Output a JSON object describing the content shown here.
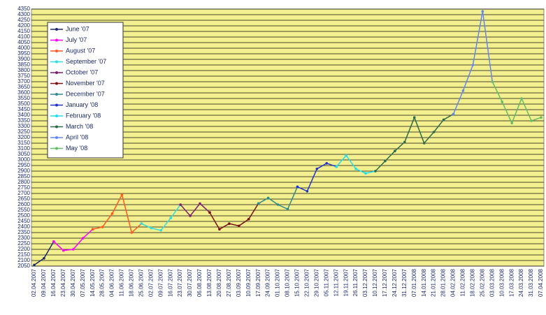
{
  "chart_data": {
    "type": "line",
    "categories": [
      "02.04.2007",
      "09.04.2007",
      "16.04.2007",
      "23.04.2007",
      "30.04.2007",
      "07.05.2007",
      "14.05.2007",
      "28.05.2007",
      "04.06.2007",
      "11.06.2007",
      "18.06.2007",
      "25.06.2007",
      "02.07.2007",
      "09.07.2007",
      "16.07.2007",
      "23.07.2007",
      "30.07.2007",
      "06.08.2007",
      "13.08.2007",
      "20.08.2007",
      "27.08.2007",
      "03.09.2007",
      "10.09.2007",
      "17.09.2007",
      "24.09.2007",
      "01.10.2007",
      "08.10.2007",
      "15.10.2007",
      "22.10.2007",
      "29.10.2007",
      "05.11.2007",
      "12.11.2007",
      "19.11.2007",
      "26.11.2007",
      "03.12.2007",
      "10.12.2007",
      "17.12.2007",
      "24.12.2007",
      "31.12.2007",
      "07.01.2008",
      "14.01.2008",
      "21.01.2008",
      "28.01.2008",
      "04.02.2008",
      "11.02.2008",
      "18.02.2008",
      "25.02.2008",
      "03.03.2008",
      "10.03.2008",
      "17.03.2008",
      "24.03.2008",
      "31.03.2008",
      "07.04.2008"
    ],
    "series": [
      {
        "name": "June '07",
        "color": "#1f2a6e",
        "values": [
          2060,
          2120,
          2270,
          null,
          null,
          null,
          null,
          null,
          null,
          null,
          null,
          null,
          null,
          null,
          null,
          null,
          null,
          null,
          null,
          null,
          null,
          null,
          null,
          null,
          null,
          null,
          null,
          null,
          null,
          null,
          null,
          null,
          null,
          null,
          null,
          null,
          null,
          null,
          null,
          null,
          null,
          null,
          null,
          null,
          null,
          null,
          null,
          null,
          null,
          null,
          null,
          null,
          null
        ]
      },
      {
        "name": "July '07",
        "color": "#ff00ff",
        "values": [
          null,
          null,
          2270,
          2190,
          2200,
          2300,
          2380,
          null,
          null,
          null,
          null,
          null,
          null,
          null,
          null,
          null,
          null,
          null,
          null,
          null,
          null,
          null,
          null,
          null,
          null,
          null,
          null,
          null,
          null,
          null,
          null,
          null,
          null,
          null,
          null,
          null,
          null,
          null,
          null,
          null,
          null,
          null,
          null,
          null,
          null,
          null,
          null,
          null,
          null,
          null,
          null,
          null,
          null
        ]
      },
      {
        "name": "August '07",
        "color": "#ff5a1e",
        "values": [
          null,
          null,
          null,
          null,
          null,
          null,
          2380,
          2400,
          2520,
          2690,
          2350,
          2430,
          null,
          null,
          null,
          null,
          null,
          null,
          null,
          null,
          null,
          null,
          null,
          null,
          null,
          null,
          null,
          null,
          null,
          null,
          null,
          null,
          null,
          null,
          null,
          null,
          null,
          null,
          null,
          null,
          null,
          null,
          null,
          null,
          null,
          null,
          null,
          null,
          null,
          null,
          null,
          null,
          null
        ]
      },
      {
        "name": "September '07",
        "color": "#33dddd",
        "values": [
          null,
          null,
          null,
          null,
          null,
          null,
          null,
          null,
          null,
          null,
          null,
          2430,
          2390,
          2370,
          2480,
          2600,
          null,
          null,
          null,
          null,
          null,
          null,
          null,
          null,
          null,
          null,
          null,
          null,
          null,
          null,
          null,
          null,
          null,
          null,
          null,
          null,
          null,
          null,
          null,
          null,
          null,
          null,
          null,
          null,
          null,
          null,
          null,
          null,
          null,
          null,
          null,
          null,
          null
        ]
      },
      {
        "name": "October '07",
        "color": "#7a1f6e",
        "values": [
          null,
          null,
          null,
          null,
          null,
          null,
          null,
          null,
          null,
          null,
          null,
          null,
          null,
          null,
          null,
          2600,
          2500,
          2610,
          2530,
          null,
          null,
          null,
          null,
          null,
          null,
          null,
          null,
          null,
          null,
          null,
          null,
          null,
          null,
          null,
          null,
          null,
          null,
          null,
          null,
          null,
          null,
          null,
          null,
          null,
          null,
          null,
          null,
          null,
          null,
          null,
          null,
          null,
          null
        ]
      },
      {
        "name": "November '07",
        "color": "#7a1414",
        "values": [
          null,
          null,
          null,
          null,
          null,
          null,
          null,
          null,
          null,
          null,
          null,
          null,
          null,
          null,
          null,
          null,
          null,
          null,
          2530,
          2380,
          2430,
          2410,
          2470,
          2610,
          null,
          null,
          null,
          null,
          null,
          null,
          null,
          null,
          null,
          null,
          null,
          null,
          null,
          null,
          null,
          null,
          null,
          null,
          null,
          null,
          null,
          null,
          null,
          null,
          null,
          null,
          null,
          null,
          null
        ]
      },
      {
        "name": "December '07",
        "color": "#2e8b8b",
        "values": [
          null,
          null,
          null,
          null,
          null,
          null,
          null,
          null,
          null,
          null,
          null,
          null,
          null,
          null,
          null,
          null,
          null,
          null,
          null,
          null,
          null,
          null,
          null,
          2610,
          2660,
          2600,
          2560,
          2760,
          null,
          null,
          null,
          null,
          null,
          null,
          null,
          null,
          null,
          null,
          null,
          null,
          null,
          null,
          null,
          null,
          null,
          null,
          null,
          null,
          null,
          null,
          null,
          null,
          null
        ]
      },
      {
        "name": "January '08",
        "color": "#2233cc",
        "values": [
          null,
          null,
          null,
          null,
          null,
          null,
          null,
          null,
          null,
          null,
          null,
          null,
          null,
          null,
          null,
          null,
          null,
          null,
          null,
          null,
          null,
          null,
          null,
          null,
          null,
          null,
          null,
          2760,
          2720,
          2920,
          2970,
          2940,
          null,
          null,
          null,
          null,
          null,
          null,
          null,
          null,
          null,
          null,
          null,
          null,
          null,
          null,
          null,
          null,
          null,
          null,
          null,
          null,
          null
        ]
      },
      {
        "name": "February '08",
        "color": "#22ddee",
        "values": [
          null,
          null,
          null,
          null,
          null,
          null,
          null,
          null,
          null,
          null,
          null,
          null,
          null,
          null,
          null,
          null,
          null,
          null,
          null,
          null,
          null,
          null,
          null,
          null,
          null,
          null,
          null,
          null,
          null,
          null,
          null,
          2940,
          3040,
          2920,
          2880,
          2900,
          null,
          null,
          null,
          null,
          null,
          null,
          null,
          null,
          null,
          null,
          null,
          null,
          null,
          null,
          null,
          null,
          null
        ]
      },
      {
        "name": "March '08",
        "color": "#2e6b4a",
        "values": [
          null,
          null,
          null,
          null,
          null,
          null,
          null,
          null,
          null,
          null,
          null,
          null,
          null,
          null,
          null,
          null,
          null,
          null,
          null,
          null,
          null,
          null,
          null,
          null,
          null,
          null,
          null,
          null,
          null,
          null,
          null,
          null,
          null,
          null,
          null,
          2900,
          2990,
          3080,
          3160,
          3380,
          3150,
          3250,
          3360,
          3410,
          null,
          null,
          null,
          null,
          null,
          null,
          null,
          null,
          null
        ]
      },
      {
        "name": "April '08",
        "color": "#6688ee",
        "values": [
          null,
          null,
          null,
          null,
          null,
          null,
          null,
          null,
          null,
          null,
          null,
          null,
          null,
          null,
          null,
          null,
          null,
          null,
          null,
          null,
          null,
          null,
          null,
          null,
          null,
          null,
          null,
          null,
          null,
          null,
          null,
          null,
          null,
          null,
          null,
          null,
          null,
          null,
          null,
          null,
          null,
          null,
          null,
          3410,
          3620,
          3850,
          4330,
          3700,
          null,
          null,
          null,
          null,
          null
        ]
      },
      {
        "name": "May '08",
        "color": "#66bb66",
        "values": [
          null,
          null,
          null,
          null,
          null,
          null,
          null,
          null,
          null,
          null,
          null,
          null,
          null,
          null,
          null,
          null,
          null,
          null,
          null,
          null,
          null,
          null,
          null,
          null,
          null,
          null,
          null,
          null,
          null,
          null,
          null,
          null,
          null,
          null,
          null,
          null,
          null,
          null,
          null,
          null,
          null,
          null,
          null,
          null,
          null,
          null,
          null,
          3700,
          3520,
          3330,
          3550,
          3350,
          3380
        ]
      }
    ],
    "ylim": [
      2050,
      4350
    ],
    "yticks": [
      2050,
      2100,
      2150,
      2200,
      2250,
      2300,
      2350,
      2400,
      2450,
      2500,
      2550,
      2600,
      2650,
      2700,
      2750,
      2800,
      2850,
      2900,
      2950,
      3000,
      3050,
      3100,
      3150,
      3200,
      3250,
      3300,
      3350,
      3400,
      3450,
      3500,
      3550,
      3600,
      3650,
      3700,
      3750,
      3800,
      3850,
      3900,
      3950,
      4000,
      4050,
      4100,
      4150,
      4200,
      4250,
      4300,
      4350
    ],
    "grid": true,
    "legend": "upper left"
  }
}
